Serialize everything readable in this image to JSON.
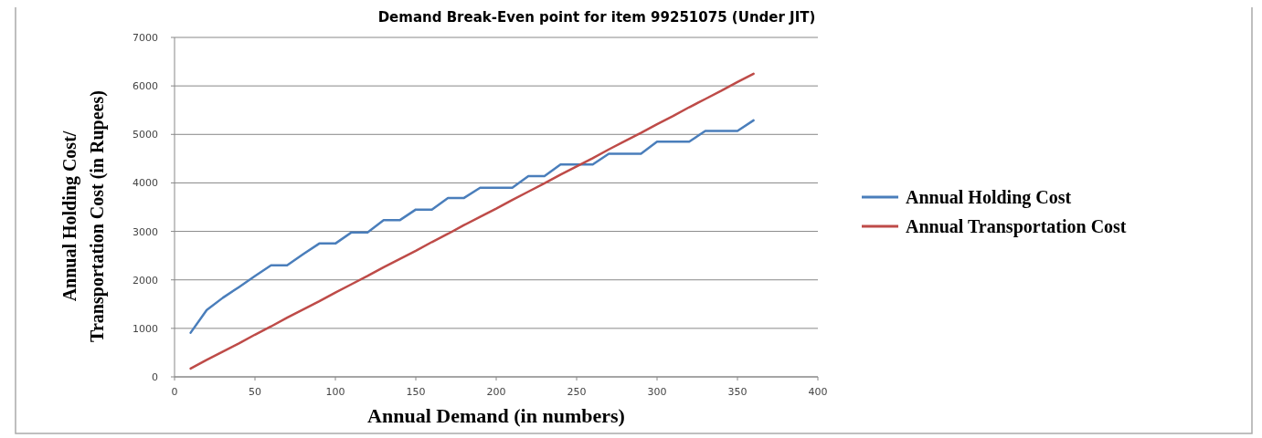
{
  "chart_data": {
    "type": "line",
    "title": "Demand Break-Even point for item 99251075 (Under JIT)",
    "xlabel": "Annual Demand (in numbers)",
    "ylabel": "Annual Holding Cost/ Transportation Cost (in Rupees)",
    "x": [
      10,
      20,
      30,
      40,
      50,
      60,
      70,
      80,
      90,
      100,
      110,
      120,
      130,
      140,
      150,
      160,
      170,
      180,
      190,
      200,
      210,
      220,
      230,
      240,
      250,
      260,
      270,
      280,
      290,
      300,
      310,
      320,
      330,
      340,
      350,
      360
    ],
    "series": [
      {
        "name": "Annual Holding Cost",
        "color": "#4a7ebb",
        "values": [
          910,
          1380,
          1630,
          1850,
          2080,
          2300,
          2300,
          2530,
          2750,
          2750,
          2980,
          2980,
          3230,
          3230,
          3450,
          3450,
          3690,
          3690,
          3900,
          3900,
          3900,
          4140,
          4140,
          4380,
          4380,
          4380,
          4600,
          4600,
          4600,
          4850,
          4850,
          4850,
          5070,
          5070,
          5070,
          5290
        ]
      },
      {
        "name": "Annual Transportation Cost",
        "color": "#be4b48",
        "values": [
          170,
          350,
          520,
          690,
          870,
          1040,
          1220,
          1390,
          1560,
          1740,
          1910,
          2080,
          2260,
          2430,
          2600,
          2780,
          2950,
          3130,
          3300,
          3470,
          3650,
          3820,
          3990,
          4170,
          4340,
          4510,
          4690,
          4860,
          5030,
          5210,
          5380,
          5560,
          5730,
          5900,
          6080,
          6250
        ]
      }
    ],
    "xlim": [
      0,
      400
    ],
    "xticks": [
      0,
      50,
      100,
      150,
      200,
      250,
      300,
      350,
      400
    ],
    "ylim": [
      0,
      7000
    ],
    "yticks": [
      0,
      1000,
      2000,
      3000,
      4000,
      5000,
      6000,
      7000
    ],
    "grid": "y",
    "legend": "right",
    "marker": "none",
    "line_style": "solid"
  }
}
